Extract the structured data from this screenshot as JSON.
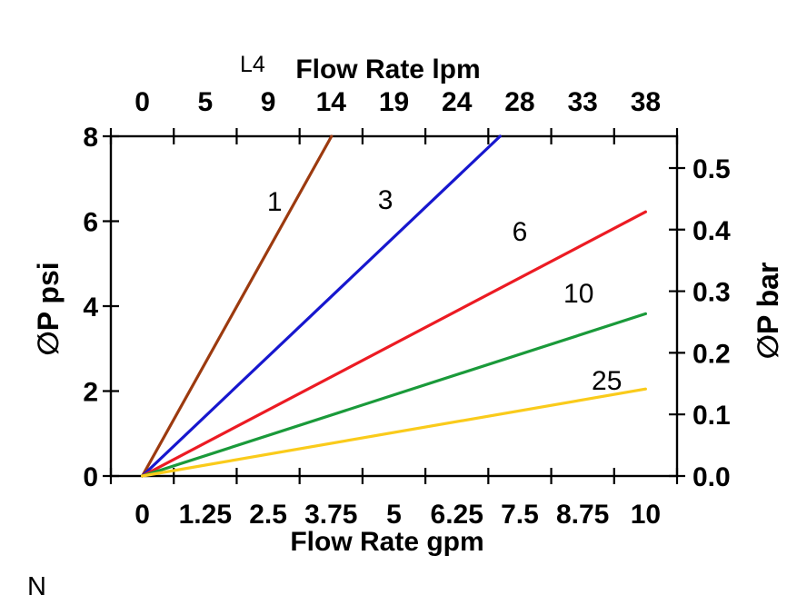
{
  "page": {
    "background": "#ffffff",
    "annotations": {
      "top_left_code": "L4",
      "bottom_left_code": "N"
    }
  },
  "chart_data": {
    "type": "line",
    "title_top": "Flow Rate lpm",
    "title_bottom": "Flow Rate gpm",
    "ylabel_left": "∅P psi",
    "ylabel_right": "∅P bar",
    "x_axis_bottom": {
      "unit": "gpm",
      "labels": [
        "0",
        "1.25",
        "2.5",
        "3.75",
        "5",
        "6.25",
        "7.5",
        "8.75",
        "10"
      ],
      "values": [
        0,
        1.25,
        2.5,
        3.75,
        5,
        6.25,
        7.5,
        8.75,
        10
      ]
    },
    "x_axis_top": {
      "unit": "lpm",
      "labels": [
        "0",
        "5",
        "9",
        "14",
        "19",
        "24",
        "28",
        "33",
        "38"
      ],
      "values": [
        0,
        5,
        9,
        14,
        19,
        24,
        28,
        33,
        38
      ]
    },
    "y_axis_left": {
      "unit": "psi",
      "labels": [
        "0",
        "2",
        "4",
        "6",
        "8"
      ],
      "values": [
        0,
        2,
        4,
        6,
        8
      ],
      "range": [
        0,
        8
      ]
    },
    "y_axis_right": {
      "unit": "bar",
      "labels": [
        "0.0",
        "0.1",
        "0.2",
        "0.3",
        "0.4",
        "0.5"
      ],
      "values": [
        0.0,
        0.1,
        0.2,
        0.3,
        0.4,
        0.5
      ],
      "psi_per_bar": 14.5038
    },
    "grid": false,
    "legend": "inline-labels",
    "series": [
      {
        "name": "1",
        "color": "#9C3A0F",
        "points": [
          [
            0,
            0
          ],
          [
            3.76,
            8
          ]
        ],
        "label_at": [
          2.63,
          6.48
        ]
      },
      {
        "name": "3",
        "color": "#1717CE",
        "points": [
          [
            0,
            0
          ],
          [
            7.11,
            8
          ]
        ],
        "label_at": [
          4.83,
          6.52
        ]
      },
      {
        "name": "6",
        "color": "#EC1B23",
        "points": [
          [
            0,
            0
          ],
          [
            10,
            6.22
          ]
        ],
        "label_at": [
          7.5,
          5.78
        ]
      },
      {
        "name": "10",
        "color": "#1A9A3A",
        "points": [
          [
            0,
            0
          ],
          [
            10,
            3.82
          ]
        ],
        "label_at": [
          8.67,
          4.32
        ]
      },
      {
        "name": "25",
        "color": "#FACB1B",
        "points": [
          [
            0,
            0
          ],
          [
            10,
            2.05
          ]
        ],
        "label_at": [
          9.23,
          2.27
        ]
      }
    ]
  }
}
